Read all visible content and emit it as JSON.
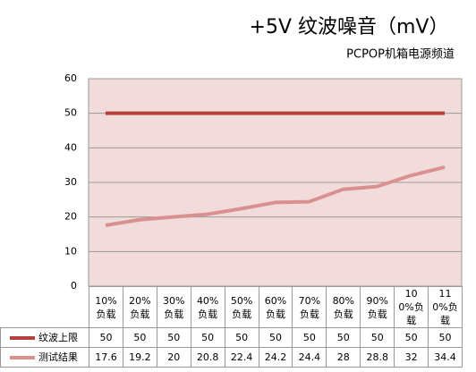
{
  "chart_data": {
    "type": "line",
    "title": "+5V 纹波噪音（mV）",
    "subtitle": "PCPOP机箱电源频道",
    "categories": [
      "10%负载",
      "20%负载",
      "30%负载",
      "40%负载",
      "50%负载",
      "60%负载",
      "70%负载",
      "80%负载",
      "90%负载",
      "100%负载",
      "110%负载"
    ],
    "series": [
      {
        "name": "纹波上限",
        "color": "#b6403d",
        "values": [
          50,
          50,
          50,
          50,
          50,
          50,
          50,
          50,
          50,
          50,
          50
        ]
      },
      {
        "name": "测试结果",
        "color": "#d9918f",
        "values": [
          17.6,
          19.2,
          20,
          20.8,
          22.4,
          24.2,
          24.4,
          28,
          28.8,
          32,
          34.4
        ]
      }
    ],
    "ylim": [
      0,
      60
    ],
    "yticks": [
      0,
      10,
      20,
      30,
      40,
      50,
      60
    ],
    "grid": true
  }
}
